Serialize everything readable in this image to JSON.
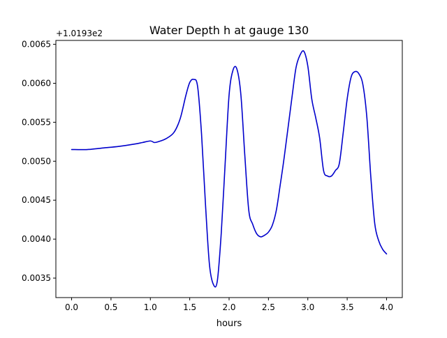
{
  "chart_data": {
    "type": "line",
    "title": "Water Depth h at gauge 130",
    "xlabel": "hours",
    "ylabel": "",
    "offset_label": "+1.0193e2",
    "xlim": [
      -0.2,
      4.2
    ],
    "ylim": [
      0.00325,
      0.00655
    ],
    "x_ticks": [
      0.0,
      0.5,
      1.0,
      1.5,
      2.0,
      2.5,
      3.0,
      3.5,
      4.0
    ],
    "x_tick_labels": [
      "0.0",
      "0.5",
      "1.0",
      "1.5",
      "2.0",
      "2.5",
      "3.0",
      "3.5",
      "4.0"
    ],
    "y_ticks": [
      0.0035,
      0.004,
      0.0045,
      0.005,
      0.0055,
      0.006,
      0.0065
    ],
    "y_tick_labels": [
      "0.0035",
      "0.0040",
      "0.0045",
      "0.0050",
      "0.0055",
      "0.0060",
      "0.0065"
    ],
    "grid": false,
    "series": [
      {
        "color": "#0000cc",
        "x": [
          0.0,
          0.2,
          0.4,
          0.6,
          0.8,
          0.9,
          1.0,
          1.05,
          1.1,
          1.2,
          1.3,
          1.38,
          1.45,
          1.5,
          1.55,
          1.6,
          1.65,
          1.7,
          1.75,
          1.8,
          1.85,
          1.9,
          1.95,
          2.0,
          2.05,
          2.1,
          2.15,
          2.2,
          2.25,
          2.3,
          2.35,
          2.4,
          2.45,
          2.5,
          2.55,
          2.6,
          2.65,
          2.7,
          2.8,
          2.85,
          2.9,
          2.95,
          3.0,
          3.05,
          3.1,
          3.15,
          3.2,
          3.25,
          3.3,
          3.35,
          3.4,
          3.45,
          3.5,
          3.55,
          3.6,
          3.65,
          3.7,
          3.75,
          3.8,
          3.85,
          3.9,
          3.95,
          4.0
        ],
        "y": [
          0.00515,
          0.00515,
          0.00517,
          0.00519,
          0.00522,
          0.00524,
          0.00526,
          0.00524,
          0.00525,
          0.00529,
          0.00537,
          0.00555,
          0.00584,
          0.00601,
          0.00605,
          0.00596,
          0.00535,
          0.00445,
          0.00368,
          0.00342,
          0.00346,
          0.00407,
          0.00497,
          0.00585,
          0.00617,
          0.00618,
          0.00585,
          0.00507,
          0.00437,
          0.00419,
          0.00407,
          0.00403,
          0.00405,
          0.00409,
          0.00418,
          0.00437,
          0.0047,
          0.00505,
          0.00583,
          0.0062,
          0.00636,
          0.00641,
          0.00622,
          0.0058,
          0.00556,
          0.0053,
          0.00488,
          0.00481,
          0.00481,
          0.00488,
          0.00497,
          0.00537,
          0.0058,
          0.00608,
          0.00615,
          0.00612,
          0.00598,
          0.00556,
          0.0048,
          0.0042,
          0.00398,
          0.00387,
          0.00381
        ]
      }
    ]
  }
}
